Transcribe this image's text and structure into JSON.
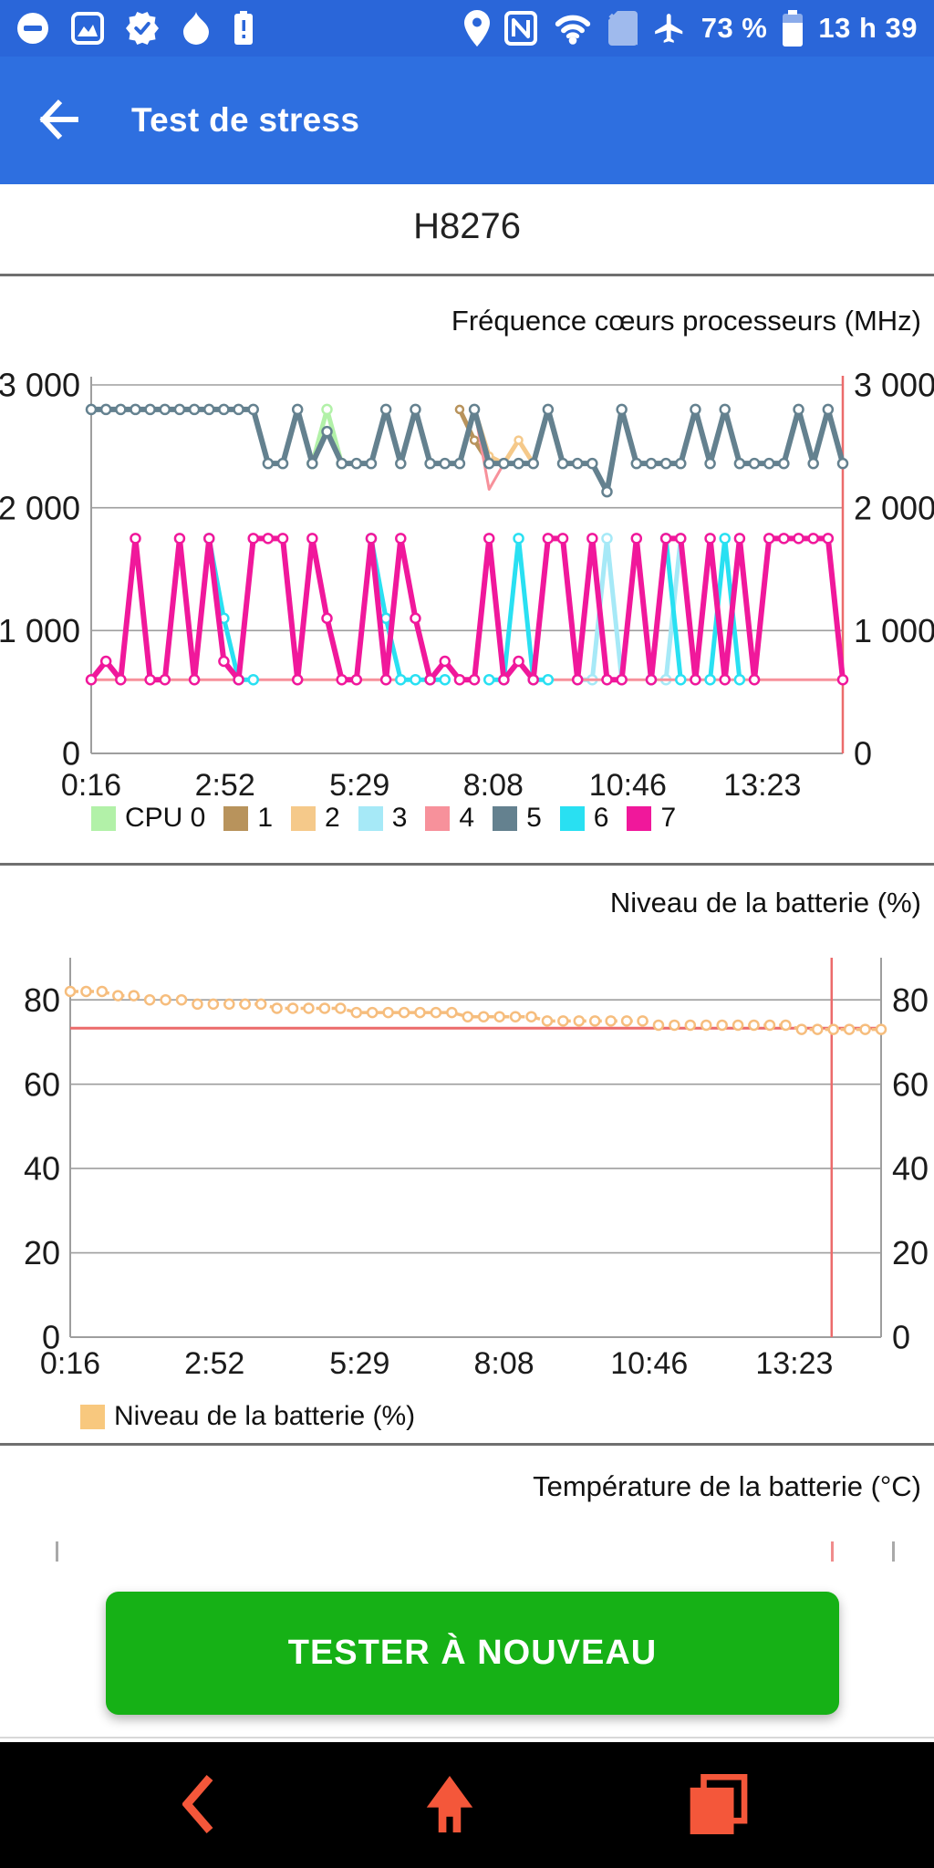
{
  "colors": {
    "status_bar_blue": "#2a66d9",
    "app_bar_blue": "#2e6fe0",
    "button_green": "#16b116",
    "nav_icon_orange": "#f4573a",
    "grid_gray": "#9e9e9e",
    "cursor_red": "#ec6b6b"
  },
  "status_bar": {
    "left_icons": [
      "do-not-disturb-icon",
      "screenshot-icon",
      "badge-check-icon",
      "flame-icon",
      "battery-alert-icon"
    ],
    "right_icons": [
      "location-icon",
      "nfc-icon",
      "wifi-icon",
      "sim-off-icon",
      "airplane-icon"
    ],
    "battery_percent": "73 %",
    "time": "13 h 39"
  },
  "app_bar": {
    "title": "Test de stress",
    "back_icon": "arrow-left-icon"
  },
  "device": {
    "model": "H8276"
  },
  "retest": {
    "label": "TESTER À NOUVEAU"
  },
  "nav_bar": {
    "icons": [
      "back-icon",
      "home-icon",
      "recents-icon"
    ]
  },
  "chart_data": [
    {
      "ref": "charts.cpu"
    },
    {
      "ref": "charts.battery"
    },
    {
      "ref": "charts.temperature"
    }
  ],
  "charts": {
    "cpu": {
      "type": "line",
      "title": "Fréquence cœurs processeurs (MHz)",
      "ylabel": "MHz",
      "ylim": [
        0,
        3000
      ],
      "grid": true,
      "y_ticks": [
        {
          "v": 3000,
          "label": "3 000"
        },
        {
          "v": 2000,
          "label": "2 000"
        },
        {
          "v": 1000,
          "label": "1 000"
        },
        {
          "v": 0,
          "label": "0"
        }
      ],
      "x_ticks": {
        "labels": [
          "0:16",
          "2:52",
          "5:29",
          "8:08",
          "10:46",
          "13:23"
        ],
        "fractions": [
          0,
          0.178,
          0.357,
          0.535,
          0.714,
          0.893
        ]
      },
      "cursor_lines": [
        {
          "orient": "v",
          "fraction": 1.0
        }
      ],
      "legend": [
        {
          "label": "CPU 0",
          "color": "#b2f1a8"
        },
        {
          "label": "1",
          "color": "#b8935c"
        },
        {
          "label": "2",
          "color": "#f5c98a"
        },
        {
          "label": "3",
          "color": "#a6e9f7"
        },
        {
          "label": "4",
          "color": "#f7919b"
        },
        {
          "label": "5",
          "color": "#64818f"
        },
        {
          "label": "6",
          "color": "#29e0f2"
        },
        {
          "label": "7",
          "color": "#f0189b"
        }
      ],
      "series": [
        {
          "name": "CPU 0",
          "color": "#b2f1a8",
          "width": 5,
          "marker": 5,
          "values": [
            null,
            null,
            null,
            null,
            null,
            null,
            null,
            null,
            null,
            null,
            null,
            null,
            null,
            null,
            null,
            2360,
            2800,
            2360,
            null,
            null,
            null,
            null,
            null,
            null,
            null,
            null,
            null,
            null,
            null,
            null,
            null,
            null,
            null,
            null,
            null,
            null,
            null,
            null,
            null,
            null,
            null,
            null,
            null,
            null,
            null,
            null,
            null,
            null,
            null,
            null,
            null,
            null
          ]
        },
        {
          "name": "CPU 1",
          "color": "#b8935c",
          "width": 5,
          "marker": 4,
          "values": [
            null,
            null,
            null,
            null,
            null,
            null,
            null,
            null,
            null,
            null,
            null,
            null,
            null,
            null,
            null,
            null,
            null,
            null,
            null,
            null,
            null,
            null,
            null,
            null,
            null,
            2800,
            2550,
            2360,
            2360,
            null,
            null,
            null,
            null,
            null,
            null,
            null,
            null,
            null,
            null,
            null,
            null,
            null,
            null,
            null,
            null,
            null,
            null,
            null,
            null,
            null,
            null,
            null
          ]
        },
        {
          "name": "CPU 2",
          "color": "#f5c98a",
          "width": 5,
          "marker": 4,
          "values": [
            null,
            null,
            null,
            null,
            null,
            null,
            null,
            null,
            null,
            null,
            null,
            null,
            null,
            null,
            null,
            null,
            null,
            null,
            null,
            null,
            null,
            null,
            null,
            null,
            null,
            null,
            2800,
            2420,
            2360,
            2550,
            2360,
            null,
            null,
            null,
            null,
            null,
            null,
            null,
            null,
            null,
            null,
            null,
            null,
            null,
            null,
            null,
            null,
            null,
            null,
            null,
            null,
            null
          ]
        },
        {
          "name": "CPU 3",
          "color": "#a6e9f7",
          "width": 5,
          "marker": 5,
          "values": [
            null,
            null,
            null,
            null,
            null,
            null,
            null,
            null,
            null,
            null,
            null,
            null,
            null,
            null,
            null,
            null,
            null,
            null,
            null,
            null,
            null,
            null,
            null,
            null,
            null,
            null,
            null,
            null,
            null,
            null,
            null,
            null,
            null,
            600,
            600,
            1750,
            600,
            null,
            null,
            600,
            1750,
            600,
            null,
            null,
            null,
            null,
            null,
            null,
            null,
            null,
            null,
            null
          ]
        },
        {
          "name": "CPU 4",
          "color": "#f7919b",
          "width": 3,
          "marker": 0,
          "values": [
            600,
            600,
            600,
            600,
            600,
            600,
            600,
            600,
            600,
            600,
            600,
            600,
            600,
            600,
            600,
            600,
            600,
            600,
            600,
            600,
            600,
            600,
            600,
            600,
            600,
            null,
            2800,
            2150,
            2360,
            2360,
            null,
            600,
            600,
            600,
            600,
            600,
            600,
            600,
            600,
            600,
            600,
            600,
            600,
            600,
            600,
            600,
            600,
            600,
            600,
            600,
            600,
            600
          ]
        },
        {
          "name": "CPU 5",
          "color": "#64818f",
          "width": 6,
          "marker": 5,
          "values": [
            2800,
            2800,
            2800,
            2800,
            2800,
            2800,
            2800,
            2800,
            2800,
            2800,
            2800,
            2800,
            2360,
            2360,
            2800,
            2360,
            2620,
            2360,
            2360,
            2360,
            2800,
            2360,
            2800,
            2360,
            2360,
            2360,
            2800,
            2360,
            2360,
            2360,
            2360,
            2800,
            2360,
            2360,
            2360,
            2130,
            2800,
            2360,
            2360,
            2360,
            2360,
            2800,
            2360,
            2800,
            2360,
            2360,
            2360,
            2360,
            2800,
            2360,
            2800,
            2360
          ]
        },
        {
          "name": "CPU 6",
          "color": "#29e0f2",
          "width": 5,
          "marker": 5,
          "values": [
            null,
            null,
            null,
            null,
            null,
            null,
            null,
            null,
            1750,
            1100,
            600,
            600,
            null,
            null,
            null,
            null,
            null,
            null,
            null,
            1750,
            1100,
            600,
            600,
            600,
            600,
            null,
            null,
            600,
            600,
            1750,
            600,
            600,
            null,
            null,
            null,
            null,
            null,
            null,
            600,
            1750,
            600,
            null,
            600,
            1750,
            600,
            null,
            null,
            null,
            null,
            null,
            null,
            null
          ]
        },
        {
          "name": "CPU 7",
          "color": "#f0189b",
          "width": 6,
          "marker": 5,
          "values": [
            600,
            750,
            600,
            1750,
            600,
            600,
            1750,
            600,
            1750,
            750,
            600,
            1750,
            1750,
            1750,
            600,
            1750,
            1100,
            600,
            600,
            1750,
            600,
            1750,
            1100,
            600,
            750,
            600,
            600,
            1750,
            600,
            750,
            600,
            1750,
            1750,
            600,
            1750,
            600,
            600,
            1750,
            600,
            1750,
            1750,
            600,
            1750,
            600,
            1750,
            600,
            1750,
            1750,
            1750,
            1750,
            1750,
            600
          ]
        }
      ]
    },
    "battery": {
      "type": "line",
      "title": "Niveau de la batterie (%)",
      "ylim": [
        0,
        90
      ],
      "grid": true,
      "y_ticks": [
        {
          "v": 80,
          "label": "80"
        },
        {
          "v": 60,
          "label": "60"
        },
        {
          "v": 40,
          "label": "40"
        },
        {
          "v": 20,
          "label": "20"
        },
        {
          "v": 0,
          "label": "0"
        }
      ],
      "x_ticks": {
        "labels": [
          "0:16",
          "2:52",
          "5:29",
          "8:08",
          "10:46",
          "13:23"
        ],
        "fractions": [
          0,
          0.178,
          0.357,
          0.535,
          0.714,
          0.893
        ]
      },
      "cursor_lines": [
        {
          "orient": "v",
          "fraction": 0.939
        },
        {
          "orient": "h",
          "value": 73.3
        }
      ],
      "legend": [
        {
          "label": "Niveau de la batterie (%)",
          "color": "#f8c87e"
        }
      ],
      "series": [
        {
          "name": "Niveau de la batterie (%)",
          "color": "#f6bd7d",
          "width": 3.5,
          "marker": 5,
          "dash": "9 8",
          "values": [
            82,
            82,
            82,
            81,
            81,
            80,
            80,
            80,
            79,
            79,
            79,
            79,
            79,
            78,
            78,
            78,
            78,
            78,
            77,
            77,
            77,
            77,
            77,
            77,
            77,
            76,
            76,
            76,
            76,
            76,
            75,
            75,
            75,
            75,
            75,
            75,
            75,
            74,
            74,
            74,
            74,
            74,
            74,
            74,
            74,
            74,
            73,
            73,
            73,
            73,
            73,
            73
          ]
        }
      ]
    },
    "temperature": {
      "type": "line",
      "title": "Température de la batterie (°C)",
      "note_visible_portion": "only title and top axis ticks visible",
      "series": []
    }
  }
}
